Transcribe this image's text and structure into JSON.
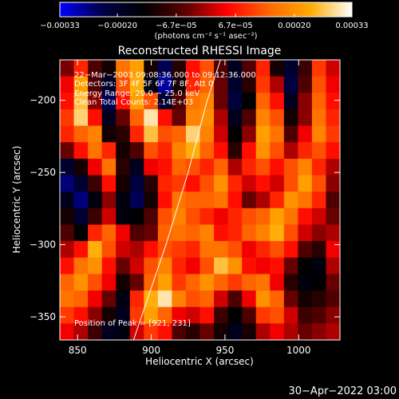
{
  "chart_data": {
    "type": "heatmap",
    "title": "Reconstructed RHESSI Image",
    "xlabel": "Heliocentric X (arcsec)",
    "ylabel": "Heliocentric Y (arcsec)",
    "xlim": [
      838,
      1028
    ],
    "ylim": [
      -366,
      -172
    ],
    "x_ticks": [
      850,
      900,
      950,
      1000
    ],
    "y_ticks": [
      -200,
      -250,
      -300,
      -350
    ],
    "x_tick_labels": [
      "850",
      "900",
      "950",
      "1000"
    ],
    "y_tick_labels": [
      "−200",
      "−250",
      "−300",
      "−350"
    ],
    "colorbar": {
      "range": [
        -0.00033,
        0.00033
      ],
      "ticks": [
        -0.00033,
        -0.0002,
        -6.7e-05,
        6.7e-05,
        0.0002,
        0.00033
      ],
      "tick_labels": [
        "−0.00033",
        "−0.00020",
        "−6.7e−05",
        "6.7e−05",
        "0.00020",
        "0.00033"
      ],
      "units_label": "(photons cm⁻² s⁻¹ asec⁻²)",
      "colors": [
        "#0000ff",
        "#00004a",
        "#000000",
        "#5a0000",
        "#ff0000",
        "#ff6600",
        "#ffaa00",
        "#ffffff"
      ]
    },
    "annotations": [
      "22−Mar−2003 09:08:36.000 to 09:12:36.000",
      "Detectors: 3F 4F 5F 6F 7F 8F, Att 0",
      "Energy Range: 20.0 − 25.0 keV",
      "Clean    Total Counts: 2.14E+03"
    ],
    "peak_label": "Position of Peak = [921, 231]",
    "limb_curve": [
      [
        888,
        -366
      ],
      [
        910,
        -300
      ],
      [
        925,
        -250
      ],
      [
        938,
        -200
      ],
      [
        947,
        -172
      ]
    ],
    "grid": [
      [
        -3e-05,
        8e-05,
        -6e-05,
        -0.00012,
        0.00016,
        0.00022,
        -0.00012,
        -0.00024,
        -0.0001,
        6e-05,
        0.00012,
        -6e-05,
        -0.00018,
        -6e-05,
        8e-05,
        -0.00012,
        -0.0002,
        -8e-05,
        0.0001,
        2e-05
      ],
      [
        4e-05,
        0.00022,
        -6e-05,
        -0.0002,
        0.00012,
        0.00024,
        -0.00016,
        -0.00028,
        -0.00012,
        8e-05,
        0.00014,
        -4e-05,
        -0.0002,
        -0.0001,
        0.0001,
        0.0,
        -0.00022,
        -6e-05,
        0.00012,
        4e-05
      ],
      [
        6e-05,
        0.00026,
        -2e-05,
        -0.00024,
        6e-05,
        0.00022,
        0.00012,
        -0.0002,
        -6e-05,
        0.00016,
        0.00018,
        -4e-05,
        -0.00022,
        -0.00014,
        0.00014,
        6e-05,
        -0.00018,
        -2e-05,
        0.00014,
        6e-05
      ],
      [
        0.0001,
        0.00028,
        6e-05,
        -0.00018,
        -4e-05,
        0.00014,
        0.0003,
        6e-05,
        -4e-05,
        0.00018,
        0.0002,
        0.0,
        -0.00018,
        -6e-05,
        0.00018,
        0.00012,
        -0.00012,
        -2e-05,
        0.00016,
        8e-05
      ],
      [
        8e-05,
        0.00014,
        0.00018,
        -0.00012,
        -0.0001,
        8e-05,
        0.00026,
        0.00012,
        0.00014,
        0.00028,
        0.00018,
        2e-05,
        -0.00014,
        -2e-05,
        0.00022,
        0.00016,
        -6e-05,
        4e-05,
        0.00018,
        0.0001
      ],
      [
        -4e-05,
        6e-05,
        0.00016,
        8e-05,
        -0.00012,
        -6e-05,
        0.00012,
        8e-05,
        0.00018,
        0.00024,
        0.00014,
        6e-05,
        -0.0001,
        6e-05,
        0.0002,
        0.00012,
        0.0,
        8e-05,
        0.00012,
        6e-05
      ],
      [
        -0.0002,
        -0.00012,
        4e-05,
        0.00016,
        -0.0001,
        -0.00018,
        4e-05,
        6e-05,
        0.00014,
        0.00012,
        8e-05,
        0.00014,
        0.0,
        8e-05,
        0.00012,
        6e-05,
        0.00012,
        0.00018,
        8e-05,
        0.0
      ],
      [
        -0.00026,
        -0.0002,
        -8e-05,
        6e-05,
        -0.00012,
        -0.00022,
        -0.0001,
        8e-05,
        0.0001,
        6e-05,
        0.00012,
        0.0002,
        8e-05,
        2e-05,
        6e-05,
        2e-05,
        0.00012,
        0.00022,
        0.00012,
        -2e-05
      ],
      [
        -0.00018,
        -0.00026,
        -0.00016,
        -2e-05,
        -0.00016,
        -0.00024,
        -0.00012,
        6e-05,
        0.00016,
        0.00014,
        0.00014,
        0.00016,
        6e-05,
        -4e-05,
        0.0,
        8e-05,
        0.0002,
        0.00016,
        8e-05,
        -6e-05
      ],
      [
        -0.00012,
        -0.0002,
        -8e-05,
        2e-05,
        -0.00016,
        -0.00014,
        -6e-05,
        0.00012,
        0.00018,
        0.00012,
        8e-05,
        4e-05,
        8e-05,
        0.00012,
        0.00014,
        0.00022,
        0.00016,
        6e-05,
        2e-05,
        -4e-05
      ],
      [
        -6e-05,
        -0.00014,
        8e-05,
        0.00014,
        4e-05,
        -6e-05,
        -4e-05,
        0.00014,
        0.00016,
        0.00014,
        0.00018,
        6e-05,
        8e-05,
        0.00014,
        0.00018,
        0.00024,
        0.00012,
        2e-05,
        -2e-05,
        0.0
      ],
      [
        0.0,
        6e-05,
        0.00024,
        0.00012,
        2e-05,
        0.0,
        6e-05,
        0.00012,
        0.0001,
        8e-05,
        0.00016,
        0.00016,
        0.00012,
        4e-05,
        8e-05,
        0.00012,
        6e-05,
        -6e-05,
        -0.0001,
        4e-05
      ],
      [
        6e-05,
        0.00016,
        0.0002,
        6e-05,
        -4e-05,
        2e-05,
        0.00012,
        0.00018,
        8e-05,
        4e-05,
        0.00012,
        0.00026,
        0.0002,
        6e-05,
        4e-05,
        6e-05,
        -4e-05,
        -0.00014,
        -0.00016,
        0.0
      ],
      [
        0.00014,
        0.0002,
        0.00012,
        4e-05,
        -0.00012,
        -4e-05,
        0.00014,
        0.00022,
        0.0001,
        0.00014,
        0.0002,
        0.00014,
        0.0001,
        0.00014,
        0.00016,
        4e-05,
        -0.0001,
        -0.00016,
        -0.00014,
        -4e-05
      ],
      [
        0.00016,
        0.00014,
        4e-05,
        -4e-05,
        -0.00016,
        8e-05,
        0.00024,
        0.0003,
        0.00018,
        0.00012,
        0.00014,
        2e-05,
        -6e-05,
        4e-05,
        0.0002,
        0.00014,
        -4e-05,
        -0.00012,
        -0.0001,
        -6e-05
      ],
      [
        0.0001,
        6e-05,
        -2e-05,
        -0.00012,
        -0.00018,
        0.0001,
        0.00022,
        0.00014,
        4e-05,
        2e-05,
        6e-05,
        -8e-05,
        -0.00014,
        -6e-05,
        0.0001,
        0.00012,
        2e-05,
        -8e-05,
        -6e-05,
        -2e-05
      ],
      [
        4e-05,
        0.0,
        -8e-05,
        -0.00018,
        -0.00016,
        2e-05,
        0.0001,
        6e-05,
        -6e-05,
        -0.0001,
        -4e-05,
        -0.00012,
        -0.00018,
        -0.00012,
        0.0,
        4e-05,
        0.0,
        -4e-05,
        -2e-05,
        0.0
      ]
    ]
  },
  "footer": {
    "date": "30−Apr−2022 03:00"
  }
}
